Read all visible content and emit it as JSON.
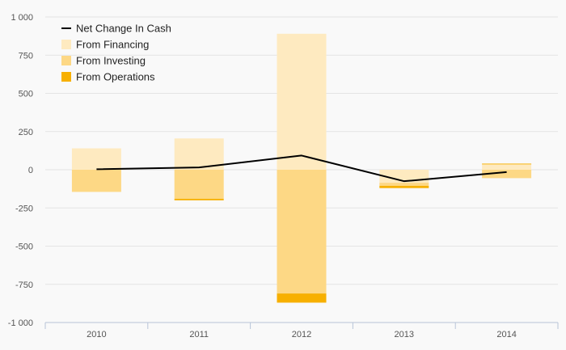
{
  "chart_data": {
    "type": "bar",
    "categories": [
      "2010",
      "2011",
      "2012",
      "2013",
      "2014"
    ],
    "series": [
      {
        "name": "Net Change In Cash",
        "kind": "line",
        "color": "#000000",
        "values": [
          3,
          15,
          93,
          -75,
          -15
        ]
      },
      {
        "name": "From Financing",
        "kind": "bar",
        "color": "#feeac0",
        "values": [
          140,
          205,
          890,
          -85,
          35
        ]
      },
      {
        "name": "From Investing",
        "kind": "bar",
        "color": "#fdd885",
        "values": [
          -145,
          -190,
          -810,
          -20,
          -55
        ]
      },
      {
        "name": "From Operations",
        "kind": "bar",
        "color": "#f7b000",
        "values": [
          0,
          -10,
          -60,
          -15,
          5
        ]
      }
    ],
    "ylim": [
      -1000,
      1000
    ],
    "yticks": [
      -1000,
      -750,
      -500,
      -250,
      0,
      250,
      500,
      750,
      1000
    ],
    "ytick_labels": [
      "-1 000",
      "-750",
      "-500",
      "-250",
      "0",
      "250",
      "500",
      "750",
      "1 000"
    ],
    "title": "",
    "xlabel": "",
    "ylabel": "",
    "grid": true,
    "legend_position": "top-left"
  }
}
